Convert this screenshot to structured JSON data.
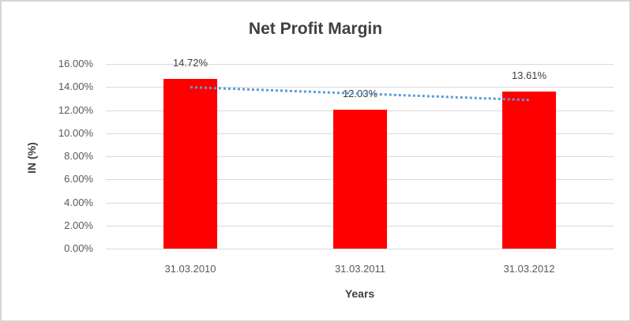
{
  "chart_data": {
    "type": "bar",
    "title": "Net Profit Margin",
    "categories": [
      "31.03.2010",
      "31.03.2011",
      "31.03.2012"
    ],
    "values": [
      14.72,
      12.03,
      13.61
    ],
    "data_labels": [
      "14.72%",
      "12.03%",
      "13.61%"
    ],
    "xlabel": "Years",
    "ylabel": "IN (%)",
    "ylim": [
      0,
      16
    ],
    "ytick_step": 2,
    "ytick_labels": [
      "0.00%",
      "2.00%",
      "4.00%",
      "6.00%",
      "8.00%",
      "10.00%",
      "12.00%",
      "14.00%",
      "16.00%"
    ],
    "grid": true,
    "legend": false,
    "bar_color": "#FF0000",
    "trendline": {
      "type": "linear",
      "style": "dotted",
      "color": "#5B9BD5",
      "endpoint_values": [
        14.01,
        12.9
      ]
    },
    "colors": {
      "title_text": "#404040",
      "axis_text": "#595959",
      "gridline": "#D9D9D9",
      "frame_border": "#D5D5D5",
      "background": "#FFFFFF"
    }
  }
}
